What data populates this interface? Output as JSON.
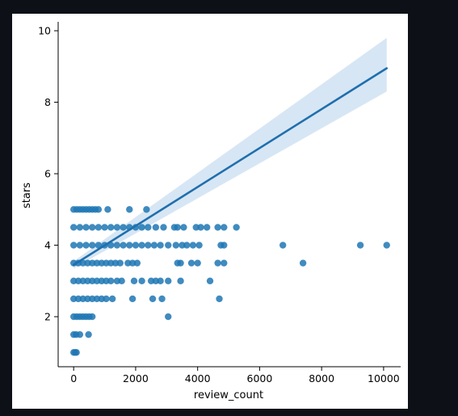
{
  "chart_data": {
    "type": "scatter",
    "title": "",
    "xlabel": "review_count",
    "ylabel": "stars",
    "xlim": [
      -500,
      10550
    ],
    "ylim": [
      0.6,
      10.25
    ],
    "x_ticks": [
      0,
      2000,
      4000,
      6000,
      8000,
      10000
    ],
    "y_ticks": [
      2,
      4,
      6,
      8,
      10
    ],
    "grid": false,
    "legend": "none",
    "colors": {
      "points": "#1f77b4",
      "regression_line": "#1f6fad",
      "confidence_band": "#c6dbef"
    },
    "regression": {
      "x": [
        0,
        10100
      ],
      "y": [
        3.45,
        8.95
      ],
      "ci_lower": [
        3.35,
        8.3
      ],
      "ci_upper": [
        3.55,
        9.8
      ]
    },
    "points": [
      {
        "x": 0,
        "y": 1.0
      },
      {
        "x": 50,
        "y": 1.0
      },
      {
        "x": 90,
        "y": 1.0
      },
      {
        "x": 0,
        "y": 1.5
      },
      {
        "x": 80,
        "y": 1.5
      },
      {
        "x": 200,
        "y": 1.5
      },
      {
        "x": 480,
        "y": 1.5
      },
      {
        "x": 0,
        "y": 2.0
      },
      {
        "x": 100,
        "y": 2.0
      },
      {
        "x": 200,
        "y": 2.0
      },
      {
        "x": 300,
        "y": 2.0
      },
      {
        "x": 400,
        "y": 2.0
      },
      {
        "x": 500,
        "y": 2.0
      },
      {
        "x": 600,
        "y": 2.0
      },
      {
        "x": 3050,
        "y": 2.0
      },
      {
        "x": 0,
        "y": 2.5
      },
      {
        "x": 150,
        "y": 2.5
      },
      {
        "x": 300,
        "y": 2.5
      },
      {
        "x": 450,
        "y": 2.5
      },
      {
        "x": 600,
        "y": 2.5
      },
      {
        "x": 750,
        "y": 2.5
      },
      {
        "x": 900,
        "y": 2.5
      },
      {
        "x": 1050,
        "y": 2.5
      },
      {
        "x": 1250,
        "y": 2.5
      },
      {
        "x": 1900,
        "y": 2.5
      },
      {
        "x": 2550,
        "y": 2.5
      },
      {
        "x": 2850,
        "y": 2.5
      },
      {
        "x": 4700,
        "y": 2.5
      },
      {
        "x": 0,
        "y": 3.0
      },
      {
        "x": 150,
        "y": 3.0
      },
      {
        "x": 300,
        "y": 3.0
      },
      {
        "x": 450,
        "y": 3.0
      },
      {
        "x": 600,
        "y": 3.0
      },
      {
        "x": 750,
        "y": 3.0
      },
      {
        "x": 900,
        "y": 3.0
      },
      {
        "x": 1050,
        "y": 3.0
      },
      {
        "x": 1200,
        "y": 3.0
      },
      {
        "x": 1400,
        "y": 3.0
      },
      {
        "x": 1550,
        "y": 3.0
      },
      {
        "x": 1950,
        "y": 3.0
      },
      {
        "x": 2200,
        "y": 3.0
      },
      {
        "x": 2500,
        "y": 3.0
      },
      {
        "x": 2650,
        "y": 3.0
      },
      {
        "x": 2800,
        "y": 3.0
      },
      {
        "x": 3050,
        "y": 3.0
      },
      {
        "x": 3450,
        "y": 3.0
      },
      {
        "x": 4400,
        "y": 3.0
      },
      {
        "x": 0,
        "y": 3.5
      },
      {
        "x": 150,
        "y": 3.5
      },
      {
        "x": 300,
        "y": 3.5
      },
      {
        "x": 450,
        "y": 3.5
      },
      {
        "x": 600,
        "y": 3.5
      },
      {
        "x": 750,
        "y": 3.5
      },
      {
        "x": 900,
        "y": 3.5
      },
      {
        "x": 1050,
        "y": 3.5
      },
      {
        "x": 1200,
        "y": 3.5
      },
      {
        "x": 1350,
        "y": 3.5
      },
      {
        "x": 1500,
        "y": 3.5
      },
      {
        "x": 1750,
        "y": 3.5
      },
      {
        "x": 1900,
        "y": 3.5
      },
      {
        "x": 2050,
        "y": 3.5
      },
      {
        "x": 3350,
        "y": 3.5
      },
      {
        "x": 3450,
        "y": 3.5
      },
      {
        "x": 3800,
        "y": 3.5
      },
      {
        "x": 4000,
        "y": 3.5
      },
      {
        "x": 4650,
        "y": 3.5
      },
      {
        "x": 4850,
        "y": 3.5
      },
      {
        "x": 7400,
        "y": 3.5
      },
      {
        "x": 0,
        "y": 4.0
      },
      {
        "x": 200,
        "y": 4.0
      },
      {
        "x": 400,
        "y": 4.0
      },
      {
        "x": 600,
        "y": 4.0
      },
      {
        "x": 800,
        "y": 4.0
      },
      {
        "x": 1000,
        "y": 4.0
      },
      {
        "x": 1200,
        "y": 4.0
      },
      {
        "x": 1400,
        "y": 4.0
      },
      {
        "x": 1600,
        "y": 4.0
      },
      {
        "x": 1800,
        "y": 4.0
      },
      {
        "x": 2000,
        "y": 4.0
      },
      {
        "x": 2200,
        "y": 4.0
      },
      {
        "x": 2400,
        "y": 4.0
      },
      {
        "x": 2600,
        "y": 4.0
      },
      {
        "x": 2800,
        "y": 4.0
      },
      {
        "x": 3050,
        "y": 4.0
      },
      {
        "x": 3300,
        "y": 4.0
      },
      {
        "x": 3500,
        "y": 4.0
      },
      {
        "x": 3650,
        "y": 4.0
      },
      {
        "x": 3850,
        "y": 4.0
      },
      {
        "x": 4050,
        "y": 4.0
      },
      {
        "x": 4750,
        "y": 4.0
      },
      {
        "x": 4850,
        "y": 4.0
      },
      {
        "x": 6750,
        "y": 4.0
      },
      {
        "x": 9250,
        "y": 4.0
      },
      {
        "x": 10100,
        "y": 4.0
      },
      {
        "x": 0,
        "y": 4.5
      },
      {
        "x": 200,
        "y": 4.5
      },
      {
        "x": 400,
        "y": 4.5
      },
      {
        "x": 600,
        "y": 4.5
      },
      {
        "x": 800,
        "y": 4.5
      },
      {
        "x": 1000,
        "y": 4.5
      },
      {
        "x": 1200,
        "y": 4.5
      },
      {
        "x": 1400,
        "y": 4.5
      },
      {
        "x": 1600,
        "y": 4.5
      },
      {
        "x": 1800,
        "y": 4.5
      },
      {
        "x": 2000,
        "y": 4.5
      },
      {
        "x": 2200,
        "y": 4.5
      },
      {
        "x": 2400,
        "y": 4.5
      },
      {
        "x": 2650,
        "y": 4.5
      },
      {
        "x": 2900,
        "y": 4.5
      },
      {
        "x": 3250,
        "y": 4.5
      },
      {
        "x": 3350,
        "y": 4.5
      },
      {
        "x": 3550,
        "y": 4.5
      },
      {
        "x": 3950,
        "y": 4.5
      },
      {
        "x": 4100,
        "y": 4.5
      },
      {
        "x": 4300,
        "y": 4.5
      },
      {
        "x": 4650,
        "y": 4.5
      },
      {
        "x": 4850,
        "y": 4.5
      },
      {
        "x": 5250,
        "y": 4.5
      },
      {
        "x": 0,
        "y": 5.0
      },
      {
        "x": 100,
        "y": 5.0
      },
      {
        "x": 200,
        "y": 5.0
      },
      {
        "x": 300,
        "y": 5.0
      },
      {
        "x": 400,
        "y": 5.0
      },
      {
        "x": 500,
        "y": 5.0
      },
      {
        "x": 600,
        "y": 5.0
      },
      {
        "x": 700,
        "y": 5.0
      },
      {
        "x": 800,
        "y": 5.0
      },
      {
        "x": 1100,
        "y": 5.0
      },
      {
        "x": 1800,
        "y": 5.0
      },
      {
        "x": 2350,
        "y": 5.0
      }
    ]
  }
}
